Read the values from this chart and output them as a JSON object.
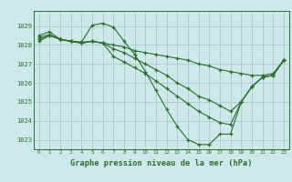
{
  "title": "Graphe pression niveau de la mer (hPa)",
  "bg_color": "#cce8e8",
  "grid_color": "#aacccc",
  "line_color": "#2d6e2d",
  "xlim": [
    -0.5,
    23.5
  ],
  "ylim": [
    1022.5,
    1029.8
  ],
  "yticks": [
    1023,
    1024,
    1025,
    1026,
    1027,
    1028,
    1029
  ],
  "xticks": [
    0,
    1,
    2,
    3,
    4,
    5,
    6,
    7,
    8,
    9,
    10,
    11,
    12,
    13,
    14,
    15,
    16,
    17,
    18,
    19,
    20,
    21,
    22,
    23
  ],
  "line1": {
    "x": [
      0,
      1,
      2,
      3,
      4,
      5,
      6,
      7,
      8,
      9,
      10,
      11,
      12,
      13,
      14,
      15,
      16,
      17,
      18,
      19,
      20,
      21,
      22,
      23
    ],
    "y": [
      1028.5,
      1028.7,
      1028.3,
      1028.2,
      1028.15,
      1029.05,
      1029.15,
      1028.95,
      1028.2,
      1027.5,
      1026.6,
      1025.6,
      1024.6,
      1023.7,
      1023.0,
      1022.75,
      1022.75,
      1023.3,
      1023.3,
      1025.0,
      1025.8,
      1026.3,
      1026.4,
      1027.2
    ]
  },
  "line2": {
    "x": [
      0,
      1,
      2,
      3,
      4,
      5,
      6,
      7,
      8,
      9,
      10,
      11,
      12,
      13,
      14,
      15,
      16,
      17,
      18,
      19,
      20,
      21,
      22,
      23
    ],
    "y": [
      1028.4,
      1028.55,
      1028.3,
      1028.2,
      1028.15,
      1028.2,
      1028.1,
      1027.4,
      1027.1,
      1026.8,
      1026.5,
      1026.1,
      1025.7,
      1025.3,
      1024.9,
      1024.5,
      1024.2,
      1023.9,
      1023.8,
      1025.0,
      1025.8,
      1026.3,
      1026.4,
      1027.2
    ]
  },
  "line3": {
    "x": [
      0,
      1,
      2,
      3,
      4,
      5,
      6,
      7,
      8,
      9,
      10,
      11,
      12,
      13,
      14,
      15,
      16,
      17,
      18,
      19,
      20,
      21,
      22,
      23
    ],
    "y": [
      1028.3,
      1028.5,
      1028.3,
      1028.2,
      1028.1,
      1028.2,
      1028.1,
      1027.8,
      1027.6,
      1027.3,
      1027.0,
      1026.7,
      1026.4,
      1026.0,
      1025.7,
      1025.3,
      1025.1,
      1024.8,
      1024.5,
      1025.0,
      1025.8,
      1026.3,
      1026.4,
      1027.2
    ]
  },
  "line4": {
    "x": [
      0,
      1,
      2,
      3,
      4,
      5,
      6,
      7,
      8,
      9,
      10,
      11,
      12,
      13,
      14,
      15,
      16,
      17,
      18,
      19,
      20,
      21,
      22,
      23
    ],
    "y": [
      1028.2,
      1028.5,
      1028.3,
      1028.2,
      1028.1,
      1028.2,
      1028.1,
      1028.0,
      1027.9,
      1027.7,
      1027.6,
      1027.5,
      1027.4,
      1027.3,
      1027.2,
      1027.0,
      1026.9,
      1026.7,
      1026.6,
      1026.5,
      1026.4,
      1026.4,
      1026.5,
      1027.2
    ]
  }
}
